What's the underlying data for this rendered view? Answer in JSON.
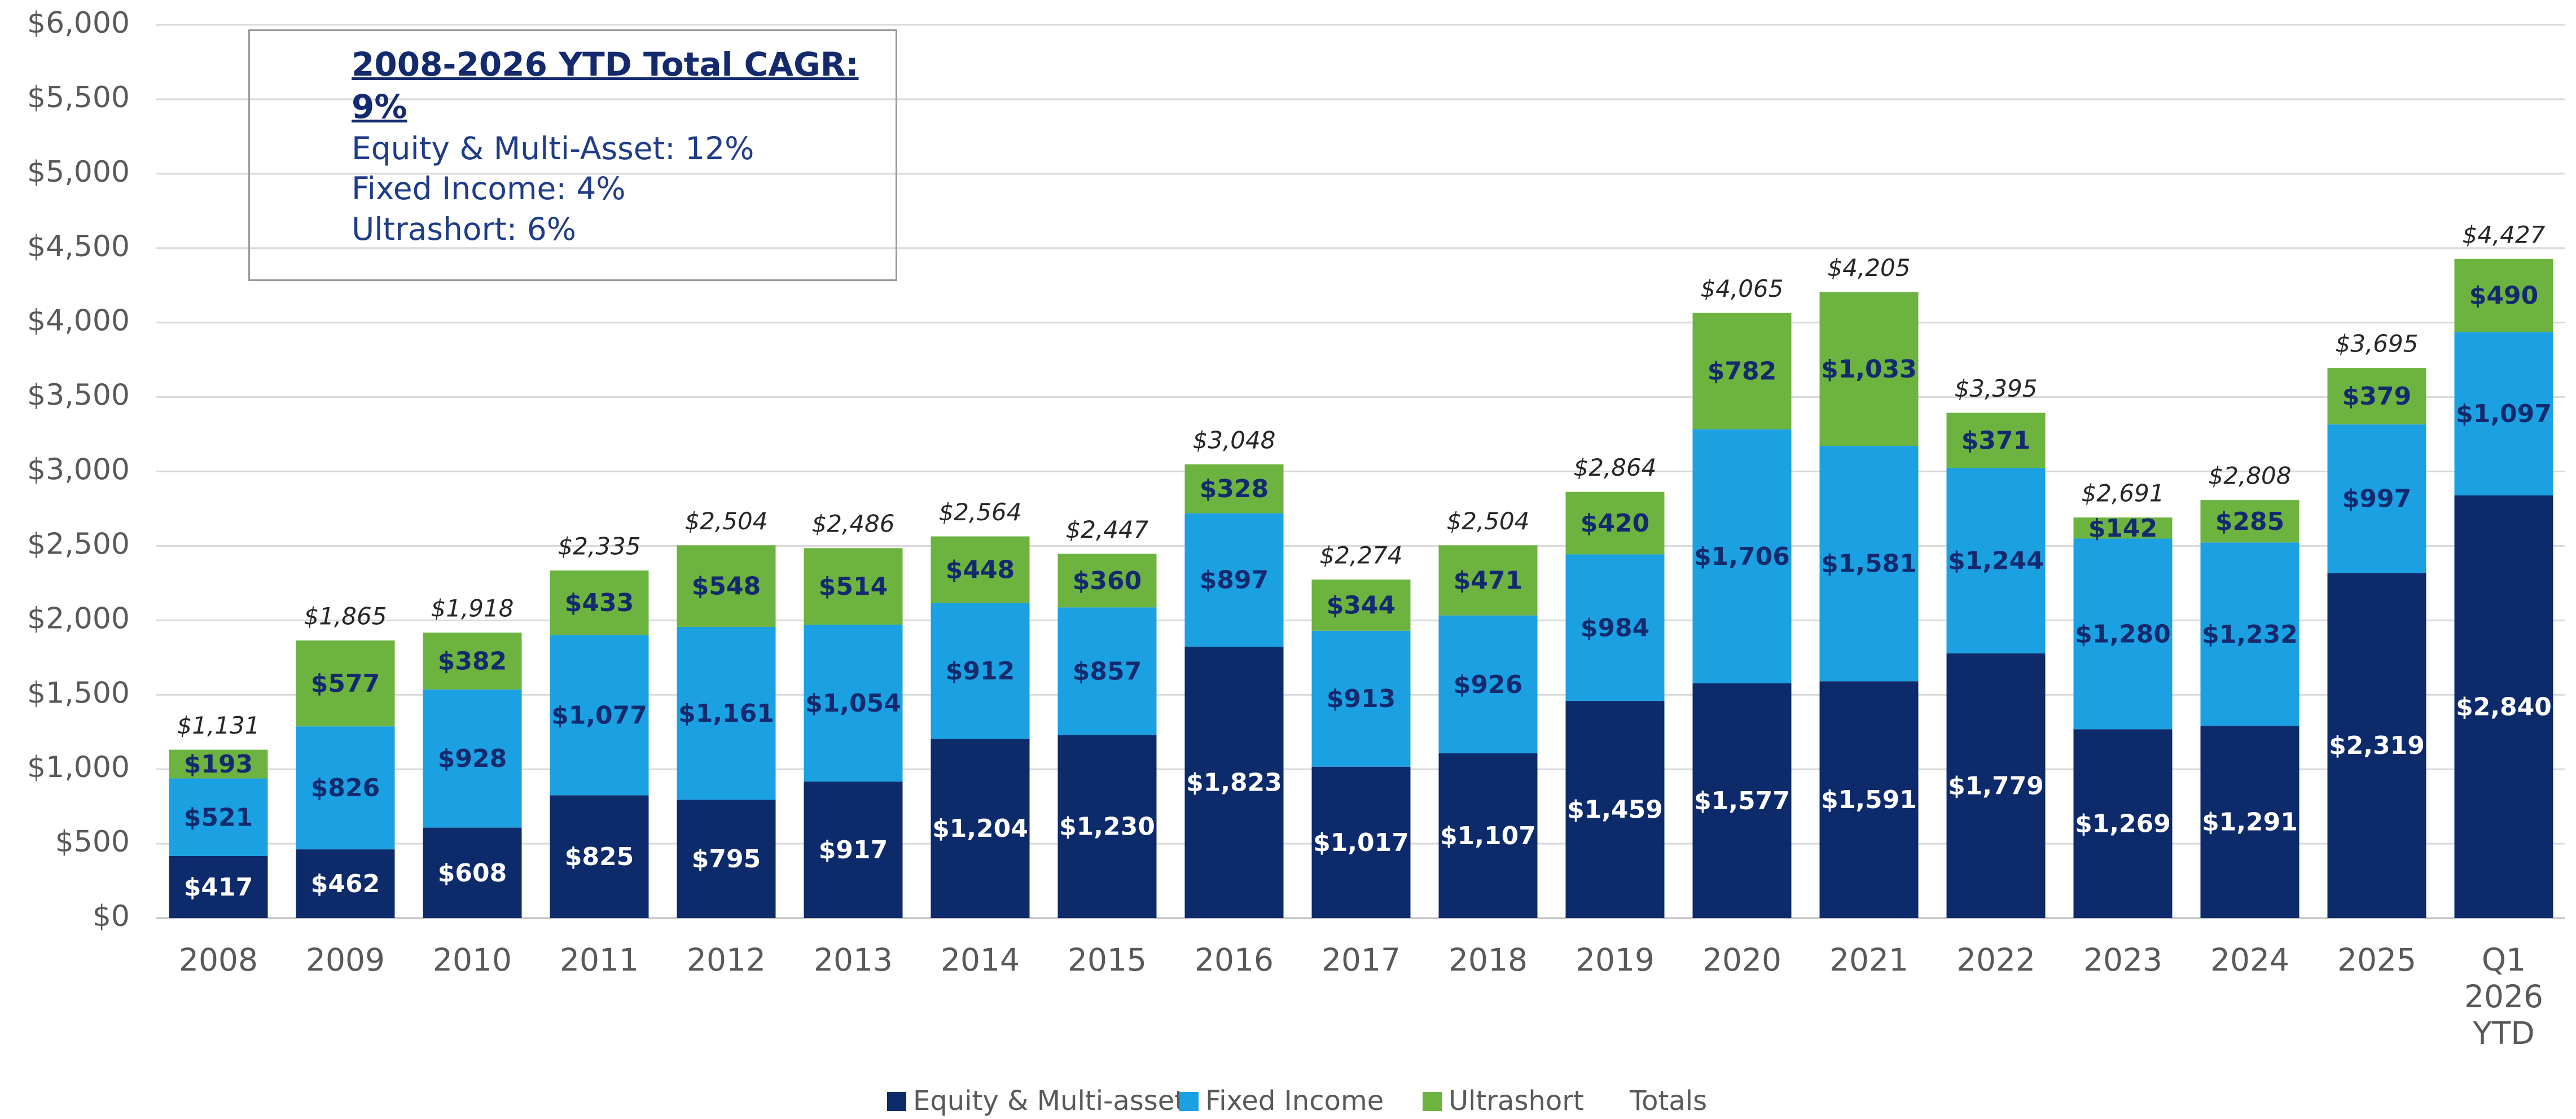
{
  "chart_data": {
    "type": "stacked_bar",
    "categories": [
      "2008",
      "2009",
      "2010",
      "2011",
      "2012",
      "2013",
      "2014",
      "2015",
      "2016",
      "2017",
      "2018",
      "2019",
      "2020",
      "2021",
      "2022",
      "2023",
      "2024",
      "2025",
      "Q1 2026 YTD"
    ],
    "series": [
      {
        "name": "Equity & Multi-asset",
        "color": "#0d2a6b",
        "values": [
          417,
          462,
          608,
          825,
          795,
          917,
          1204,
          1230,
          1823,
          1017,
          1107,
          1459,
          1577,
          1591,
          1779,
          1269,
          1291,
          2319,
          2840
        ],
        "value_labels": [
          "$417",
          "$462",
          "$608",
          "$825",
          "$795",
          "$917",
          "$1,204",
          "$1,230",
          "$1,823",
          "$1,017",
          "$1,107",
          "$1,459",
          "$1,577",
          "$1,591",
          "$1,779",
          "$1,269",
          "$1,291",
          "$2,319",
          "$2,840"
        ]
      },
      {
        "name": "Fixed Income",
        "color": "#1ba1e2",
        "values": [
          521,
          826,
          928,
          1077,
          1161,
          1054,
          912,
          857,
          897,
          913,
          926,
          984,
          1706,
          1581,
          1244,
          1280,
          1232,
          997,
          1097
        ],
        "value_labels": [
          "$521",
          "$826",
          "$928",
          "$1,077",
          "$1,161",
          "$1,054",
          "$912",
          "$857",
          "$897",
          "$913",
          "$926",
          "$984",
          "$1,706",
          "$1,581",
          "$1,244",
          "$1,280",
          "$1,232",
          "$997",
          "$1,097"
        ]
      },
      {
        "name": "Ultrashort",
        "color": "#6db33f",
        "values": [
          193,
          577,
          382,
          433,
          548,
          514,
          448,
          360,
          328,
          344,
          471,
          420,
          782,
          1033,
          371,
          142,
          285,
          379,
          490
        ],
        "value_labels": [
          "$193",
          "$577",
          "$382",
          "$433",
          "$548",
          "$514",
          "$448",
          "$360",
          "$328",
          "$344",
          "$471",
          "$420",
          "$782",
          "$1,033",
          "$371",
          "$142",
          "$285",
          "$379",
          "$490"
        ]
      }
    ],
    "totals": {
      "name": "Totals",
      "values": [
        1131,
        1865,
        1918,
        2335,
        2504,
        2486,
        2564,
        2447,
        3048,
        2274,
        2504,
        2864,
        4065,
        4205,
        3395,
        2691,
        2808,
        3695,
        4427
      ],
      "value_labels": [
        "$1,131",
        "$1,865",
        "$1,918",
        "$2,335",
        "$2,504",
        "$2,486",
        "$2,564",
        "$2,447",
        "$3,048",
        "$2,274",
        "$2,504",
        "$2,864",
        "$4,065",
        "$4,205",
        "$3,395",
        "$2,691",
        "$2,808",
        "$3,695",
        "$4,427"
      ]
    },
    "ylim": [
      0,
      6000
    ],
    "yticks": [
      {
        "value": 0,
        "label": "$0"
      },
      {
        "value": 500,
        "label": "$500"
      },
      {
        "value": 1000,
        "label": "$1,000"
      },
      {
        "value": 1500,
        "label": "$1,500"
      },
      {
        "value": 2000,
        "label": "$2,000"
      },
      {
        "value": 2500,
        "label": "$2,500"
      },
      {
        "value": 3000,
        "label": "$3,000"
      },
      {
        "value": 3500,
        "label": "$3,500"
      },
      {
        "value": 4000,
        "label": "$4,000"
      },
      {
        "value": 4500,
        "label": "$4,500"
      },
      {
        "value": 5000,
        "label": "$5,000"
      },
      {
        "value": 5500,
        "label": "$5,500"
      },
      {
        "value": 6000,
        "label": "$6,000"
      }
    ],
    "grid": true,
    "legend": "bottom",
    "annotation": {
      "title": "2008-2026 YTD Total CAGR: 9%",
      "lines": [
        "Equity & Multi-Asset: 12%",
        "Fixed Income: 4%",
        "Ultrashort: 6%"
      ]
    }
  }
}
